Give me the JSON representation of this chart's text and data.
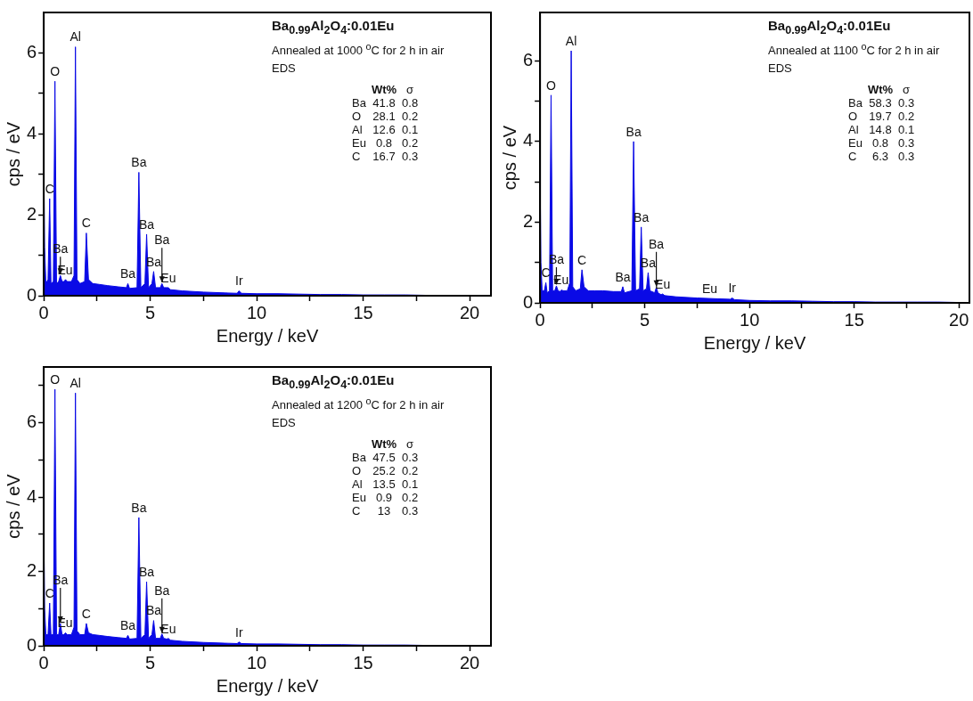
{
  "chart_data": [
    {
      "type": "area",
      "title": "Ba$_{0.99}$Al$_{2}$O$_{4}$:0.01Eu",
      "subtitle": "Annealed at 1000 $^{o}$C for 2 h in air",
      "xlabel": "Energy / keV",
      "ylabel": "cps / eV",
      "color": "#0a0ae6",
      "x": [
        0,
        0.04,
        0.1,
        0.2,
        0.277,
        0.34,
        0.45,
        0.525,
        0.6,
        0.7,
        0.78,
        0.86,
        0.95,
        1.02,
        1.1,
        1.3,
        1.42,
        1.487,
        1.56,
        1.7,
        1.92,
        2.0,
        2.1,
        2.3,
        2.6,
        3.0,
        3.5,
        3.88,
        3.95,
        4.03,
        4.38,
        4.466,
        4.56,
        4.75,
        4.83,
        4.92,
        5.08,
        5.16,
        5.25,
        5.47,
        5.55,
        5.63,
        5.78,
        5.85,
        5.95,
        6.5,
        7.5,
        8.5,
        9.08,
        9.17,
        9.28,
        10,
        11,
        12,
        13,
        14,
        15,
        16,
        17,
        18,
        19,
        20,
        21
      ],
      "values": [
        3.3,
        1.2,
        0.3,
        0.4,
        2.4,
        0.3,
        0.35,
        5.3,
        0.3,
        0.35,
        0.5,
        0.35,
        0.35,
        0.4,
        0.35,
        0.35,
        0.5,
        6.15,
        0.4,
        0.3,
        0.35,
        1.55,
        0.4,
        0.3,
        0.28,
        0.25,
        0.22,
        0.2,
        0.3,
        0.18,
        0.2,
        3.05,
        0.2,
        0.3,
        1.52,
        0.2,
        0.3,
        0.6,
        0.2,
        0.2,
        0.3,
        0.2,
        0.2,
        0.2,
        0.15,
        0.12,
        0.09,
        0.07,
        0.06,
        0.12,
        0.06,
        0.05,
        0.05,
        0.04,
        0.03,
        0.03,
        0.02,
        0.02,
        0.02,
        0.01,
        0.01,
        0.01,
        0.01
      ],
      "xlim": [
        0,
        21
      ],
      "xticks": [
        0,
        {
          "value": 2.5,
          "label": null
        },
        5,
        {
          "value": 7.5,
          "label": null
        },
        10,
        {
          "value": 12.5,
          "label": null
        },
        15,
        {
          "value": 17.5,
          "label": null
        },
        20
      ],
      "ylim": [
        0,
        7
      ],
      "yticks": [
        0,
        {
          "value": 1,
          "label": null
        },
        2,
        {
          "value": 3,
          "label": null
        },
        4,
        {
          "value": 5,
          "label": null
        },
        6
      ],
      "annotations": [
        {
          "text": "C",
          "x": 0.277,
          "y": 2.4
        },
        {
          "text": "O",
          "x": 0.525,
          "y": 5.3
        },
        {
          "text": "Al",
          "x": 1.487,
          "y": 6.15
        },
        {
          "text": "Eu",
          "x": 1.0,
          "y": 0.4
        },
        {
          "text": "Ba",
          "x": 0.78,
          "y": 0.5
        },
        {
          "text": "C",
          "x": 2.0,
          "y": 1.55
        },
        {
          "text": "Ba",
          "x": 3.95,
          "y": 0.3
        },
        {
          "text": "Ba",
          "x": 4.466,
          "y": 3.05
        },
        {
          "text": "Ba",
          "x": 4.83,
          "y": 1.52
        },
        {
          "text": "Ba",
          "x": 5.16,
          "y": 0.6
        },
        {
          "text": "Eu",
          "x": 5.85,
          "y": 0.2
        },
        {
          "text": "Ba",
          "x": 5.55,
          "y": 0.3
        },
        {
          "text": "Ir",
          "x": 9.17,
          "y": 0.12
        },
        "EDS",
        "Wt% σ",
        "Ba 41.8 0.8",
        "O 28.1 0.2",
        "Al 12.6 0.1",
        "Eu 0.8 0.2",
        "C 16.7 0.3"
      ]
    },
    {
      "type": "area",
      "title": "Ba$_{0.99}$Al$_{2}$O$_{4}$:0.01Eu",
      "subtitle": "Annealed at 1100 $^{o}$C for 2 h in air",
      "xlabel": "Energy / keV",
      "ylabel": "cps / eV",
      "color": "#0a0ae6",
      "x": [
        0,
        0.04,
        0.1,
        0.2,
        0.277,
        0.34,
        0.45,
        0.525,
        0.6,
        0.7,
        0.78,
        0.86,
        0.95,
        1.02,
        1.1,
        1.3,
        1.42,
        1.487,
        1.56,
        1.7,
        1.92,
        2.0,
        2.1,
        2.3,
        2.6,
        3.0,
        3.5,
        3.88,
        3.95,
        4.03,
        4.38,
        4.466,
        4.56,
        4.75,
        4.83,
        4.92,
        5.08,
        5.16,
        5.25,
        5.47,
        5.55,
        5.63,
        5.78,
        5.85,
        5.95,
        6.5,
        7.5,
        8.5,
        9.08,
        9.17,
        9.28,
        10,
        11,
        12,
        13,
        14,
        15,
        16,
        17,
        18,
        19,
        20,
        20.5
      ],
      "values": [
        3.3,
        1.0,
        0.3,
        0.3,
        0.5,
        0.25,
        0.3,
        5.15,
        0.3,
        0.3,
        0.42,
        0.3,
        0.28,
        0.32,
        0.3,
        0.3,
        0.5,
        6.25,
        0.4,
        0.3,
        0.35,
        0.82,
        0.4,
        0.3,
        0.3,
        0.3,
        0.28,
        0.28,
        0.4,
        0.25,
        0.3,
        4.0,
        0.3,
        0.35,
        1.88,
        0.3,
        0.35,
        0.75,
        0.3,
        0.25,
        0.38,
        0.25,
        0.2,
        0.22,
        0.18,
        0.15,
        0.12,
        0.1,
        0.09,
        0.12,
        0.08,
        0.06,
        0.05,
        0.05,
        0.04,
        0.03,
        0.03,
        0.02,
        0.02,
        0.02,
        0.02,
        0.01,
        0.01
      ],
      "xlim": [
        0,
        20.5
      ],
      "xticks": [
        0,
        {
          "value": 2.5,
          "label": null
        },
        5,
        {
          "value": 7.5,
          "label": null
        },
        10,
        {
          "value": 12.5,
          "label": null
        },
        15,
        {
          "value": 17.5,
          "label": null
        },
        20
      ],
      "ylim": [
        0,
        7.2
      ],
      "yticks": [
        0,
        {
          "value": 1,
          "label": null
        },
        2,
        {
          "value": 3,
          "label": null
        },
        4,
        {
          "value": 5,
          "label": null
        },
        6
      ],
      "annotations": [
        {
          "text": "C",
          "x": 0.277,
          "y": 0.5
        },
        {
          "text": "O",
          "x": 0.525,
          "y": 5.15
        },
        {
          "text": "Al",
          "x": 1.487,
          "y": 6.25
        },
        {
          "text": "Eu",
          "x": 1.0,
          "y": 0.32
        },
        {
          "text": "Ba",
          "x": 0.78,
          "y": 0.42
        },
        {
          "text": "C",
          "x": 2.0,
          "y": 0.82
        },
        {
          "text": "Ba",
          "x": 3.95,
          "y": 0.4
        },
        {
          "text": "Ba",
          "x": 4.466,
          "y": 4.0
        },
        {
          "text": "Ba",
          "x": 4.83,
          "y": 1.88
        },
        {
          "text": "Ba",
          "x": 5.16,
          "y": 0.75
        },
        {
          "text": "Eu",
          "x": 5.85,
          "y": 0.22
        },
        {
          "text": "Ba",
          "x": 5.55,
          "y": 0.38
        },
        {
          "text": "Eu",
          "x": 8.1,
          "y": 0.11
        },
        {
          "text": "Ir",
          "x": 9.17,
          "y": 0.12
        },
        "EDS",
        "Wt% σ",
        "Ba 58.3 0.3",
        "O 19.7 0.2",
        "Al 14.8 0.1",
        "Eu 0.8 0.3",
        "C 6.3 0.3"
      ]
    },
    {
      "type": "area",
      "title": "Ba$_{0.99}$Al$_{2}$O$_{4}$:0.01Eu",
      "subtitle": "Annealed at 1200 $^{o}$C for 2 h in air",
      "xlabel": "Energy / keV",
      "ylabel": "cps / eV",
      "color": "#0a0ae6",
      "x": [
        0,
        0.04,
        0.1,
        0.2,
        0.277,
        0.34,
        0.45,
        0.525,
        0.6,
        0.7,
        0.78,
        0.86,
        0.95,
        1.02,
        1.1,
        1.3,
        1.42,
        1.487,
        1.56,
        1.7,
        1.92,
        2.0,
        2.1,
        2.3,
        2.6,
        3.0,
        3.5,
        3.88,
        3.95,
        4.03,
        4.38,
        4.466,
        4.56,
        4.75,
        4.83,
        4.92,
        5.08,
        5.16,
        5.25,
        5.47,
        5.55,
        5.63,
        5.78,
        5.85,
        5.95,
        6.5,
        7.5,
        8.5,
        9.08,
        9.17,
        9.28,
        10,
        11,
        12,
        13,
        14,
        15,
        16,
        17,
        18,
        19,
        20,
        21
      ],
      "values": [
        3.2,
        1.0,
        0.3,
        0.3,
        1.15,
        0.3,
        0.3,
        6.9,
        0.3,
        0.3,
        0.6,
        0.3,
        0.3,
        0.35,
        0.3,
        0.3,
        0.5,
        6.8,
        0.4,
        0.3,
        0.3,
        0.6,
        0.35,
        0.3,
        0.28,
        0.25,
        0.22,
        0.2,
        0.28,
        0.18,
        0.2,
        3.45,
        0.2,
        0.3,
        1.72,
        0.2,
        0.3,
        0.68,
        0.2,
        0.2,
        0.32,
        0.2,
        0.18,
        0.2,
        0.15,
        0.12,
        0.09,
        0.07,
        0.06,
        0.1,
        0.06,
        0.05,
        0.05,
        0.04,
        0.03,
        0.03,
        0.02,
        0.02,
        0.02,
        0.01,
        0.01,
        0.01,
        0.01
      ],
      "xlim": [
        0,
        21
      ],
      "xticks": [
        0,
        {
          "value": 2.5,
          "label": null
        },
        5,
        {
          "value": 7.5,
          "label": null
        },
        10,
        {
          "value": 12.5,
          "label": null
        },
        15,
        {
          "value": 17.5,
          "label": null
        },
        20
      ],
      "ylim": [
        0,
        7.5
      ],
      "yticks": [
        0,
        {
          "value": 1,
          "label": null
        },
        2,
        {
          "value": 3,
          "label": null
        },
        4,
        {
          "value": 5,
          "label": null
        },
        6,
        {
          "value": 7,
          "label": null
        }
      ],
      "annotations": [
        {
          "text": "C",
          "x": 0.277,
          "y": 1.15
        },
        {
          "text": "O",
          "x": 0.525,
          "y": 6.9
        },
        {
          "text": "Al",
          "x": 1.487,
          "y": 6.8
        },
        {
          "text": "Eu",
          "x": 1.0,
          "y": 0.35
        },
        {
          "text": "Ba",
          "x": 0.78,
          "y": 0.6
        },
        {
          "text": "C",
          "x": 2.0,
          "y": 0.6
        },
        {
          "text": "Ba",
          "x": 3.95,
          "y": 0.28
        },
        {
          "text": "Ba",
          "x": 4.466,
          "y": 3.45
        },
        {
          "text": "Ba",
          "x": 4.83,
          "y": 1.72
        },
        {
          "text": "Ba",
          "x": 5.16,
          "y": 0.68
        },
        {
          "text": "Eu",
          "x": 5.85,
          "y": 0.2
        },
        {
          "text": "Ba",
          "x": 5.55,
          "y": 0.32
        },
        {
          "text": "Ir",
          "x": 9.17,
          "y": 0.1
        },
        "EDS",
        "Wt% σ",
        "Ba 47.5 0.3",
        "O 25.2 0.2",
        "Al 13.5 0.1",
        "Eu 0.9 0.2",
        "C 13 0.3"
      ]
    }
  ]
}
